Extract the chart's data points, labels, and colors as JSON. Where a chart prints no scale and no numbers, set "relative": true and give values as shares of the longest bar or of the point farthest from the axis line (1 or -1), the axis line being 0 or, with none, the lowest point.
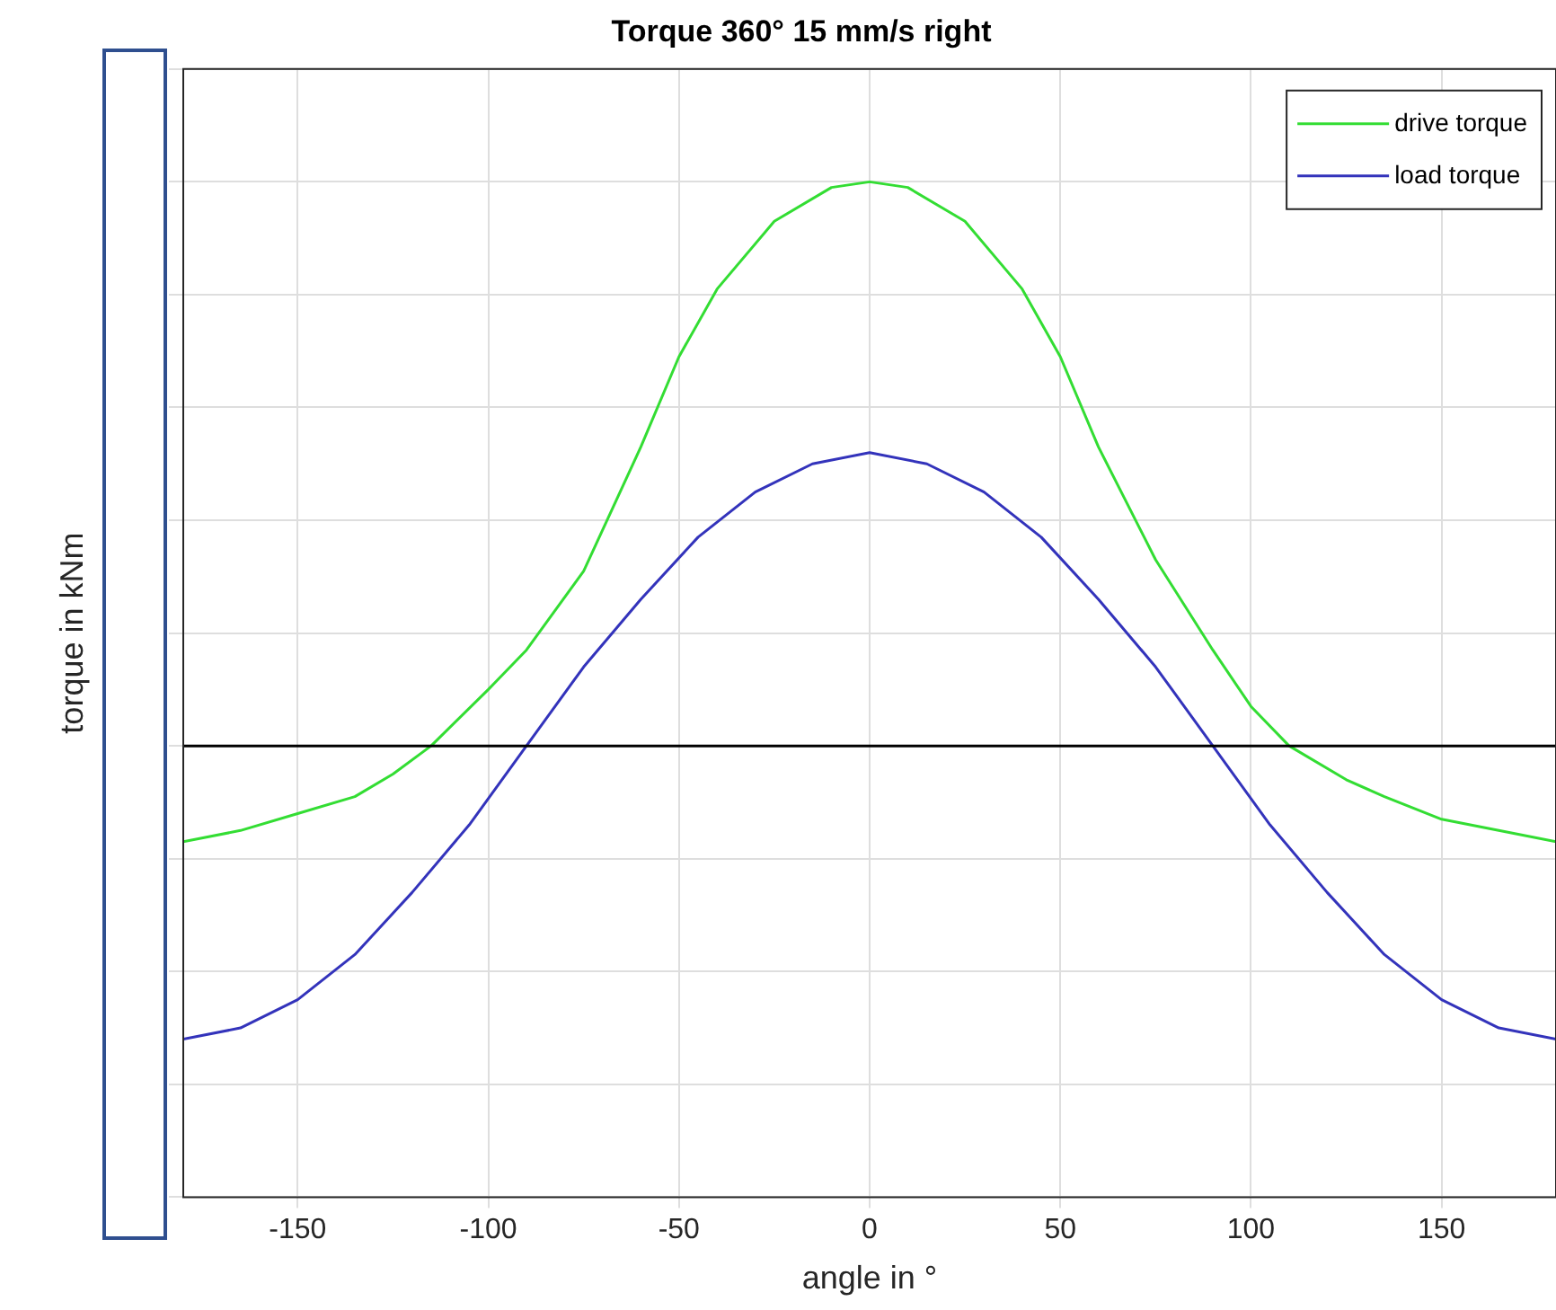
{
  "chart_data": {
    "type": "line",
    "title": "Torque 360° 15 mm/s right",
    "xlabel": "angle in °",
    "ylabel": "torque in kNm",
    "relative": true,
    "xlim": [
      -180,
      180
    ],
    "xticks": [
      -150,
      -100,
      -50,
      0,
      50,
      100,
      150
    ],
    "grid": true,
    "legend": "top right",
    "ref_lines": [
      {
        "axis": "y",
        "value": 0,
        "color": "#000000"
      }
    ],
    "series": [
      {
        "name": "drive torque",
        "color": "#33dd33",
        "x": [
          -180,
          -165,
          -150,
          -135,
          -125,
          -115,
          -100,
          -90,
          -75,
          -60,
          -50,
          -40,
          -25,
          -10,
          0,
          10,
          25,
          40,
          50,
          60,
          75,
          90,
          100,
          110,
          125,
          135,
          150,
          165,
          180
        ],
        "values": [
          -0.17,
          -0.15,
          -0.12,
          -0.09,
          -0.05,
          0.0,
          0.1,
          0.17,
          0.31,
          0.53,
          0.69,
          0.81,
          0.93,
          0.99,
          1.0,
          0.99,
          0.93,
          0.81,
          0.69,
          0.53,
          0.33,
          0.17,
          0.07,
          0.0,
          -0.06,
          -0.09,
          -0.13,
          -0.15,
          -0.17
        ]
      },
      {
        "name": "load torque",
        "color": "#3333bb",
        "x": [
          -180,
          -165,
          -150,
          -135,
          -120,
          -105,
          -90,
          -75,
          -60,
          -45,
          -30,
          -15,
          0,
          15,
          30,
          45,
          60,
          75,
          90,
          105,
          120,
          135,
          150,
          165,
          180
        ],
        "values": [
          -0.52,
          -0.5,
          -0.45,
          -0.37,
          -0.26,
          -0.14,
          0.0,
          0.14,
          0.26,
          0.37,
          0.45,
          0.5,
          0.52,
          0.5,
          0.45,
          0.37,
          0.26,
          0.14,
          0.0,
          -0.14,
          -0.26,
          -0.37,
          -0.45,
          -0.5,
          -0.52
        ]
      }
    ]
  }
}
